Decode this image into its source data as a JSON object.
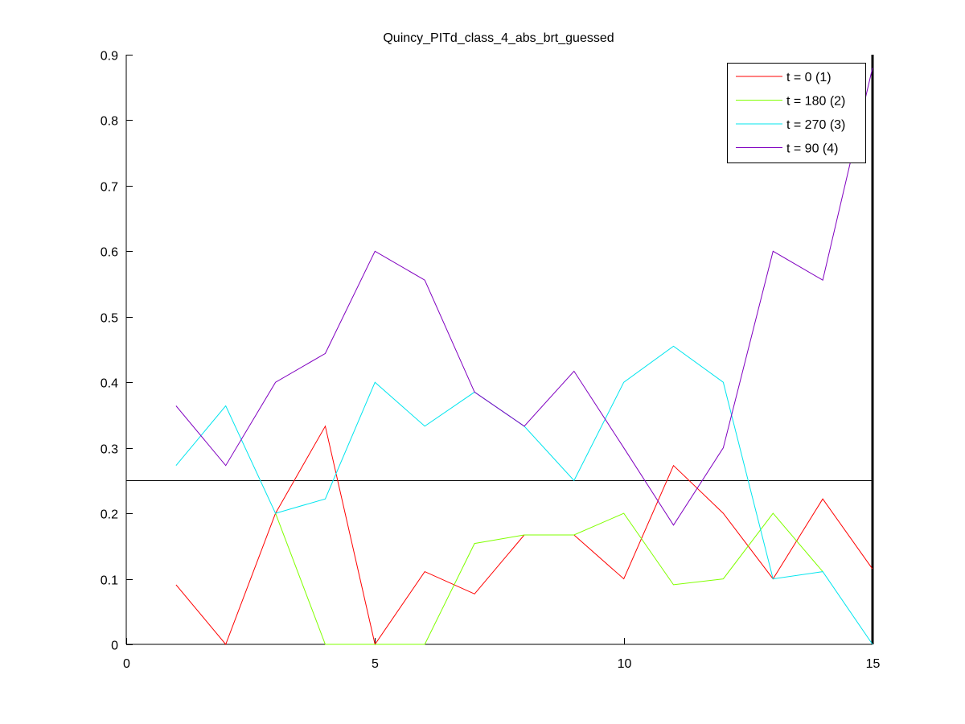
{
  "chart_data": {
    "type": "line",
    "title": "Quincy_PITd_class_4_abs_brt_guessed",
    "xlabel": "",
    "ylabel": "",
    "xlim": [
      0,
      15
    ],
    "ylim": [
      0,
      0.9
    ],
    "xticks": [
      0,
      5,
      10,
      15
    ],
    "xtick_labels": [
      "0",
      "5",
      "10",
      "15"
    ],
    "yticks": [
      0,
      0.1,
      0.2,
      0.3,
      0.4,
      0.5,
      0.6,
      0.7,
      0.8,
      0.9
    ],
    "ytick_labels": [
      "0",
      "0.1",
      "0.2",
      "0.3",
      "0.4",
      "0.5",
      "0.6",
      "0.7",
      "0.8",
      "0.9"
    ],
    "grid": false,
    "legend_position": "top-right",
    "x": [
      1,
      2,
      3,
      4,
      5,
      6,
      7,
      8,
      9,
      10,
      11,
      12,
      13,
      14,
      15
    ],
    "series": [
      {
        "name": "t = 0 (1)",
        "color": "#ff0000",
        "values": [
          0.091,
          0.0,
          0.2,
          0.333,
          0.0,
          0.111,
          0.077,
          0.167,
          0.167,
          0.1,
          0.273,
          0.2,
          0.1,
          0.222,
          0.115
        ]
      },
      {
        "name": "t = 180 (2)",
        "color": "#80ff00",
        "values": [
          null,
          null,
          0.2,
          0.0,
          0.0,
          0.0,
          0.154,
          0.167,
          0.167,
          0.2,
          0.091,
          0.1,
          0.2,
          0.111,
          null
        ]
      },
      {
        "name": "t = 270 (3)",
        "color": "#00e5ee",
        "values": [
          0.273,
          0.364,
          0.2,
          0.222,
          0.4,
          0.333,
          0.385,
          0.333,
          0.25,
          0.4,
          0.455,
          0.4,
          0.1,
          0.111,
          0.0
        ]
      },
      {
        "name": "t = 90 (4)",
        "color": "#8000c0",
        "values": [
          0.364,
          0.273,
          0.4,
          0.444,
          0.6,
          0.556,
          0.385,
          0.333,
          0.417,
          0.3,
          0.182,
          0.3,
          0.6,
          0.556,
          0.88
        ]
      }
    ],
    "reference_lines": [
      {
        "orientation": "horizontal",
        "value": 0.25,
        "color": "#000000"
      },
      {
        "orientation": "vertical",
        "value": 15,
        "color": "#000000",
        "bold": true
      }
    ]
  }
}
